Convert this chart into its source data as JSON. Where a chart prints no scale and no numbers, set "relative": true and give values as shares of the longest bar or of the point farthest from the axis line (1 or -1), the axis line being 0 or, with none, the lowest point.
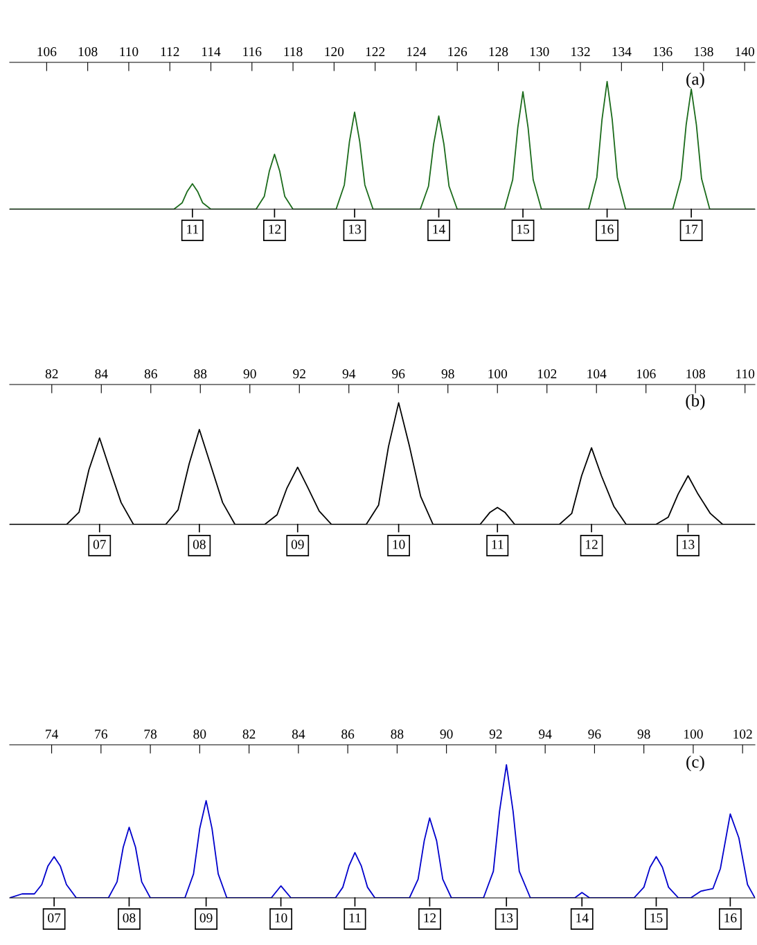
{
  "chart_data": [
    {
      "type": "line",
      "relative": true,
      "marker": "none",
      "line_style": "solid",
      "grid": false,
      "tick_labels": "x",
      "xlim": [
        104.2,
        140.5
      ],
      "xticks": [
        106,
        108,
        110,
        112,
        114,
        116,
        118,
        120,
        122,
        124,
        126,
        128,
        130,
        132,
        134,
        136,
        138,
        140
      ],
      "series": [
        {
          "color": "#1b6b1b",
          "x": [
            104.2,
            112.2,
            112.6,
            112.85,
            113.1,
            113.35,
            113.6,
            114.0,
            116.2,
            116.6,
            116.85,
            117.1,
            117.35,
            117.6,
            118.0,
            120.1,
            120.5,
            120.75,
            121.0,
            121.25,
            121.5,
            121.9,
            124.2,
            124.6,
            124.85,
            125.1,
            125.35,
            125.6,
            126.0,
            128.3,
            128.7,
            128.95,
            129.2,
            129.45,
            129.7,
            130.1,
            132.4,
            132.8,
            133.05,
            133.3,
            133.55,
            133.8,
            134.2,
            136.5,
            136.9,
            137.15,
            137.4,
            137.65,
            137.9,
            138.3,
            140.5
          ],
          "values": [
            0,
            0,
            0.05,
            0.14,
            0.2,
            0.14,
            0.05,
            0,
            0,
            0.1,
            0.3,
            0.43,
            0.3,
            0.1,
            0,
            0,
            0.19,
            0.53,
            0.76,
            0.53,
            0.19,
            0,
            0,
            0.18,
            0.51,
            0.73,
            0.51,
            0.18,
            0,
            0,
            0.23,
            0.64,
            0.92,
            0.64,
            0.23,
            0,
            0,
            0.25,
            0.7,
            1,
            0.7,
            0.25,
            0,
            0,
            0.24,
            0.66,
            0.94,
            0.66,
            0.24,
            0,
            0
          ]
        }
      ],
      "annotations": [
        "(a)",
        "11",
        "12",
        "13",
        "14",
        "15",
        "16",
        "17"
      ]
    },
    {
      "type": "line",
      "relative": true,
      "marker": "none",
      "line_style": "solid",
      "grid": false,
      "tick_labels": "x",
      "xlim": [
        80.3,
        110.4
      ],
      "xticks": [
        82,
        84,
        86,
        88,
        90,
        92,
        94,
        96,
        98,
        100,
        102,
        104,
        106,
        108,
        110
      ],
      "series": [
        {
          "color": "#000000",
          "x": [
            80.3,
            82.6,
            83.1,
            83.5,
            83.93,
            84.35,
            84.8,
            85.3,
            86.6,
            87.1,
            87.55,
            87.96,
            88.4,
            88.9,
            89.4,
            90.6,
            91.1,
            91.5,
            91.93,
            92.35,
            92.8,
            93.3,
            94.7,
            95.2,
            95.6,
            96.01,
            96.45,
            96.9,
            97.4,
            99.3,
            99.7,
            100.0,
            100.3,
            100.7,
            102.5,
            103.0,
            103.4,
            103.8,
            104.2,
            104.7,
            105.2,
            106.4,
            106.9,
            107.3,
            107.7,
            108.1,
            108.6,
            109.1,
            110.4
          ],
          "values": [
            0,
            0,
            0.1,
            0.45,
            0.71,
            0.45,
            0.18,
            0,
            0,
            0.12,
            0.5,
            0.78,
            0.5,
            0.18,
            0,
            0,
            0.08,
            0.3,
            0.47,
            0.3,
            0.11,
            0,
            0,
            0.16,
            0.64,
            1,
            0.64,
            0.23,
            0,
            0,
            0.1,
            0.14,
            0.1,
            0,
            0,
            0.09,
            0.4,
            0.63,
            0.4,
            0.15,
            0,
            0,
            0.06,
            0.25,
            0.4,
            0.25,
            0.09,
            0,
            0
          ]
        }
      ],
      "annotations": [
        "(b)",
        "07",
        "08",
        "09",
        "10",
        "11",
        "12",
        "13"
      ]
    },
    {
      "type": "line",
      "relative": true,
      "marker": "none",
      "line_style": "solid",
      "grid": false,
      "tick_labels": "x",
      "xlim": [
        72.3,
        102.5
      ],
      "xticks": [
        74,
        76,
        78,
        80,
        82,
        84,
        86,
        88,
        90,
        92,
        94,
        96,
        98,
        100,
        102
      ],
      "series": [
        {
          "color": "#0000cc",
          "x": [
            72.3,
            72.8,
            73.3,
            73.6,
            73.85,
            74.1,
            74.35,
            74.6,
            75.0,
            76.3,
            76.65,
            76.9,
            77.14,
            77.4,
            77.65,
            78.0,
            79.4,
            79.75,
            80.0,
            80.26,
            80.5,
            80.75,
            81.1,
            82.9,
            83.29,
            83.7,
            85.5,
            85.8,
            86.05,
            86.29,
            86.55,
            86.8,
            87.1,
            88.5,
            88.85,
            89.1,
            89.32,
            89.6,
            89.85,
            90.2,
            91.5,
            91.9,
            92.15,
            92.43,
            92.7,
            92.95,
            93.4,
            95.2,
            95.49,
            95.8,
            97.6,
            98.0,
            98.25,
            98.5,
            98.75,
            99.0,
            99.4,
            99.9,
            100.3,
            100.8,
            101.1,
            101.5,
            101.85,
            102.2,
            102.5
          ],
          "values": [
            0,
            0.03,
            0.03,
            0.1,
            0.24,
            0.31,
            0.24,
            0.1,
            0,
            0,
            0.12,
            0.38,
            0.53,
            0.38,
            0.12,
            0,
            0,
            0.18,
            0.52,
            0.73,
            0.52,
            0.18,
            0,
            0,
            0.09,
            0,
            0,
            0.08,
            0.24,
            0.34,
            0.24,
            0.08,
            0,
            0,
            0.14,
            0.43,
            0.6,
            0.43,
            0.14,
            0,
            0,
            0.2,
            0.65,
            1,
            0.65,
            0.2,
            0,
            0,
            0.04,
            0,
            0,
            0.08,
            0.23,
            0.31,
            0.23,
            0.08,
            0,
            0,
            0.05,
            0.07,
            0.22,
            0.63,
            0.45,
            0.1,
            0
          ]
        }
      ],
      "annotations": [
        "(c)",
        "07",
        "08",
        "09",
        "10",
        "11",
        "12",
        "13",
        "14",
        "15",
        "16"
      ]
    }
  ]
}
